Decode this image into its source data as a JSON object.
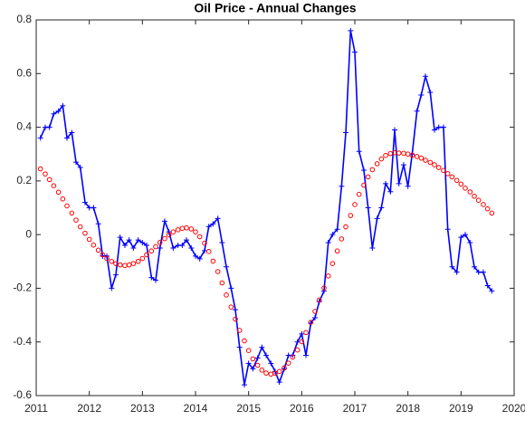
{
  "chart_data": {
    "type": "line",
    "title": "Oil Price - Annual Changes",
    "x": [
      2011.08,
      2011.17,
      2011.25,
      2011.33,
      2011.42,
      2011.5,
      2011.58,
      2011.67,
      2011.75,
      2011.83,
      2011.92,
      2012.0,
      2012.08,
      2012.17,
      2012.25,
      2012.33,
      2012.42,
      2012.5,
      2012.58,
      2012.67,
      2012.75,
      2012.83,
      2012.92,
      2013.0,
      2013.08,
      2013.17,
      2013.25,
      2013.33,
      2013.42,
      2013.5,
      2013.58,
      2013.67,
      2013.75,
      2013.83,
      2013.92,
      2014.0,
      2014.08,
      2014.17,
      2014.25,
      2014.33,
      2014.42,
      2014.5,
      2014.58,
      2014.67,
      2014.75,
      2014.83,
      2014.92,
      2015.0,
      2015.08,
      2015.17,
      2015.25,
      2015.33,
      2015.42,
      2015.5,
      2015.58,
      2015.67,
      2015.75,
      2015.83,
      2015.92,
      2016.0,
      2016.08,
      2016.17,
      2016.25,
      2016.33,
      2016.42,
      2016.5,
      2016.58,
      2016.67,
      2016.75,
      2016.83,
      2016.92,
      2017.0,
      2017.08,
      2017.17,
      2017.25,
      2017.33,
      2017.42,
      2017.5,
      2017.58,
      2017.67,
      2017.75,
      2017.83,
      2017.92,
      2018.0,
      2018.08,
      2018.17,
      2018.25,
      2018.33,
      2018.42,
      2018.5,
      2018.58,
      2018.67,
      2018.75,
      2018.83,
      2018.92,
      2019.0,
      2019.08,
      2019.17,
      2019.25,
      2019.33,
      2019.42,
      2019.5,
      2019.58
    ],
    "series": [
      {
        "color": "#0000ff",
        "marker": "plus",
        "values": [
          0.36,
          0.4,
          0.4,
          0.45,
          0.46,
          0.48,
          0.36,
          0.38,
          0.27,
          0.25,
          0.12,
          0.1,
          0.1,
          0.04,
          -0.08,
          -0.08,
          -0.2,
          -0.15,
          -0.01,
          -0.04,
          -0.02,
          -0.05,
          -0.02,
          -0.03,
          -0.04,
          -0.16,
          -0.17,
          -0.05,
          0.05,
          0.01,
          -0.05,
          -0.04,
          -0.04,
          -0.02,
          -0.05,
          -0.08,
          -0.09,
          -0.06,
          0.03,
          0.04,
          0.06,
          -0.03,
          -0.12,
          -0.2,
          -0.28,
          -0.42,
          -0.56,
          -0.48,
          -0.5,
          -0.46,
          -0.42,
          -0.45,
          -0.48,
          -0.51,
          -0.55,
          -0.5,
          -0.45,
          -0.45,
          -0.4,
          -0.37,
          -0.45,
          -0.33,
          -0.31,
          -0.25,
          -0.21,
          -0.03,
          0.0,
          0.02,
          0.18,
          0.38,
          0.76,
          0.68,
          0.31,
          0.24,
          0.1,
          -0.05,
          0.06,
          0.1,
          0.19,
          0.16,
          0.39,
          0.19,
          0.26,
          0.18,
          0.3,
          0.46,
          0.52,
          0.59,
          0.53,
          0.39,
          0.4,
          0.4,
          0.02,
          -0.12,
          -0.14,
          -0.01,
          0.0,
          -0.03,
          -0.12,
          -0.14,
          -0.14,
          -0.19,
          -0.21
        ]
      },
      {
        "color": "#ff0000",
        "marker": "circle",
        "values": [
          0.245,
          0.226,
          0.205,
          0.182,
          0.158,
          0.133,
          0.107,
          0.08,
          0.054,
          0.029,
          0.005,
          -0.018,
          -0.039,
          -0.058,
          -0.075,
          -0.089,
          -0.1,
          -0.108,
          -0.113,
          -0.115,
          -0.113,
          -0.108,
          -0.1,
          -0.089,
          -0.075,
          -0.061,
          -0.045,
          -0.029,
          -0.015,
          -0.001,
          0.01,
          0.018,
          0.023,
          0.025,
          0.021,
          0.01,
          -0.008,
          -0.032,
          -0.063,
          -0.099,
          -0.138,
          -0.18,
          -0.225,
          -0.27,
          -0.315,
          -0.357,
          -0.396,
          -0.432,
          -0.463,
          -0.487,
          -0.505,
          -0.516,
          -0.52,
          -0.517,
          -0.51,
          -0.497,
          -0.479,
          -0.457,
          -0.43,
          -0.399,
          -0.365,
          -0.327,
          -0.286,
          -0.244,
          -0.199,
          -0.154,
          -0.108,
          -0.061,
          -0.016,
          0.029,
          0.071,
          0.112,
          0.15,
          0.184,
          0.215,
          0.242,
          0.264,
          0.282,
          0.295,
          0.302,
          0.305,
          0.304,
          0.303,
          0.3,
          0.296,
          0.291,
          0.285,
          0.277,
          0.269,
          0.26,
          0.25,
          0.239,
          0.227,
          0.215,
          0.202,
          0.188,
          0.173,
          0.159,
          0.143,
          0.128,
          0.112,
          0.096,
          0.08
        ]
      }
    ],
    "xlim": [
      2011,
      2020
    ],
    "xticks": [
      2011,
      2012,
      2013,
      2014,
      2015,
      2016,
      2017,
      2018,
      2019,
      2020
    ],
    "ylim": [
      -0.6,
      0.8
    ],
    "yticks": [
      -0.6,
      -0.4,
      -0.2,
      0,
      0.2,
      0.4,
      0.6,
      0.8
    ],
    "grid": false
  }
}
